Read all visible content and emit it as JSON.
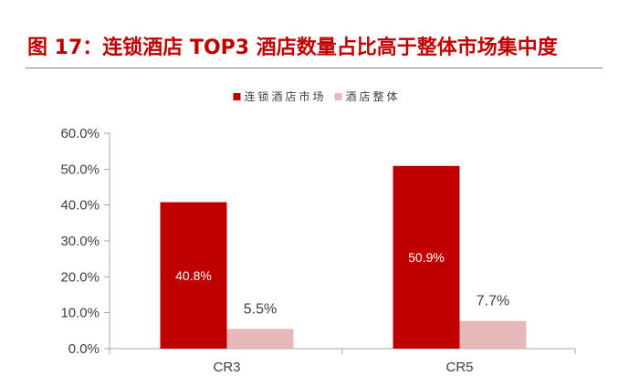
{
  "chart_data": {
    "type": "bar",
    "title": "图 17：连锁酒店 TOP3 酒店数量占比高于整体市场集中度",
    "title_color": "#C00000",
    "categories": [
      "CR3",
      "CR5"
    ],
    "series": [
      {
        "name": "连锁酒店市场",
        "values": [
          40.8,
          50.9
        ],
        "labels": [
          "40.8%",
          "50.9%"
        ],
        "color": "#C00000"
      },
      {
        "name": "酒店整体",
        "values": [
          5.5,
          7.7
        ],
        "labels": [
          "5.5%",
          "7.7%"
        ],
        "color": "#E6B8B7"
      }
    ],
    "ylim": [
      0,
      60
    ],
    "yticks": [
      0,
      10,
      20,
      30,
      40,
      50,
      60
    ],
    "ytick_labels": [
      "0.0%",
      "10.0%",
      "20.0%",
      "30.0%",
      "40.0%",
      "50.0%",
      "60.0%"
    ],
    "grid": false,
    "legend_position": "top-center"
  }
}
